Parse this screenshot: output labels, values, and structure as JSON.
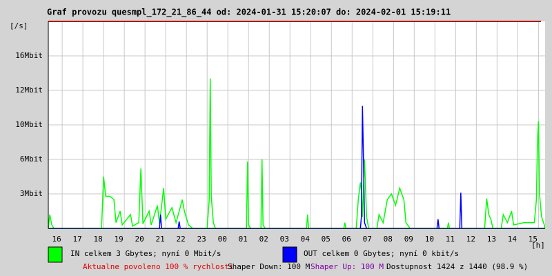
{
  "chart_data": {
    "type": "area",
    "title": "Graf provozu quesmpl_172_21_86_44 od: 2024-01-31 15:20:07 do: 2024-02-01 15:19:11",
    "y_unit": "[/s]",
    "x_unit": "[h]",
    "ylim": [
      0,
      20
    ],
    "yticks": [
      {
        "value": 3,
        "label": "3Mbit"
      },
      {
        "value": 6,
        "label": "6Mbit"
      },
      {
        "value": 10,
        "label": "10Mbit"
      },
      {
        "value": 12,
        "label": "12Mbit"
      },
      {
        "value": 16,
        "label": "16Mbit"
      }
    ],
    "xlim": [
      15.33,
      39.32
    ],
    "xticks": [
      {
        "value": 16,
        "label": "16"
      },
      {
        "value": 17,
        "label": "17"
      },
      {
        "value": 18,
        "label": "18"
      },
      {
        "value": 19,
        "label": "19"
      },
      {
        "value": 20,
        "label": "20"
      },
      {
        "value": 21,
        "label": "21"
      },
      {
        "value": 22,
        "label": "22"
      },
      {
        "value": 23,
        "label": "23"
      },
      {
        "value": 24,
        "label": "00"
      },
      {
        "value": 25,
        "label": "01"
      },
      {
        "value": 26,
        "label": "02"
      },
      {
        "value": 27,
        "label": "03"
      },
      {
        "value": 28,
        "label": "04"
      },
      {
        "value": 29,
        "label": "05"
      },
      {
        "value": 30,
        "label": "06"
      },
      {
        "value": 31,
        "label": "07"
      },
      {
        "value": 32,
        "label": "08"
      },
      {
        "value": 33,
        "label": "09"
      },
      {
        "value": 34,
        "label": "10"
      },
      {
        "value": 35,
        "label": "11"
      },
      {
        "value": 36,
        "label": "12"
      },
      {
        "value": 37,
        "label": "13"
      },
      {
        "value": 38,
        "label": "14"
      },
      {
        "value": 39,
        "label": "15"
      }
    ],
    "grid": true,
    "series": [
      {
        "name": "IN celkem 3 Gbytes; nyní 0 Mbit/s",
        "color": "#00ff00",
        "x": [
          15.33,
          15.4,
          15.5,
          15.6,
          17.9,
          18.0,
          18.1,
          18.3,
          18.5,
          18.6,
          18.8,
          18.9,
          19.3,
          19.4,
          19.7,
          19.8,
          19.9,
          20.2,
          20.3,
          20.6,
          20.7,
          20.9,
          21.0,
          21.3,
          21.5,
          21.8,
          21.9,
          22.1,
          22.3,
          23.0,
          23.1,
          23.15,
          23.2,
          23.3,
          23.4,
          24.9,
          24.95,
          25.0,
          25.1,
          25.6,
          25.65,
          25.7,
          25.8,
          27.8,
          27.85,
          27.9,
          29.6,
          29.65,
          29.7,
          30.2,
          30.3,
          30.4,
          30.45,
          30.5,
          30.6,
          30.7,
          30.8,
          31.2,
          31.3,
          31.5,
          31.7,
          31.9,
          32.1,
          32.3,
          32.5,
          32.6,
          32.8,
          34.6,
          34.65,
          34.7,
          36.4,
          36.5,
          36.6,
          36.7,
          36.8,
          37.2,
          37.3,
          37.5,
          37.7,
          37.8,
          38.3,
          38.8,
          38.9,
          38.95,
          39.0,
          39.05,
          39.15,
          39.3
        ],
        "values": [
          0,
          1.2,
          0.3,
          0,
          0,
          4.5,
          2.8,
          2.8,
          2.5,
          0.5,
          1.5,
          0.3,
          1.2,
          0.2,
          0.5,
          5.2,
          0.4,
          1.5,
          0.3,
          2.0,
          0.4,
          3.5,
          0.8,
          1.8,
          0.5,
          2.5,
          1.5,
          0.3,
          0,
          0,
          2.5,
          13.4,
          2.8,
          0.5,
          0,
          0,
          5.8,
          0.3,
          0,
          0,
          6.0,
          0.3,
          0,
          0,
          1.2,
          0,
          0,
          0.5,
          0,
          0,
          2.5,
          4.0,
          3.2,
          1.0,
          6.0,
          1.0,
          0,
          0,
          1.2,
          0.5,
          2.5,
          3.0,
          2.0,
          3.5,
          2.5,
          0.5,
          0,
          0,
          0.5,
          0,
          0,
          2.6,
          1.2,
          0.8,
          0,
          0,
          1.2,
          0.5,
          1.5,
          0.3,
          0.5,
          0.5,
          2.5,
          8.0,
          10.2,
          3.0,
          1.0,
          0.2
        ]
      },
      {
        "name": "OUT celkem 0 Gbytes; nyní 0 kbit/s",
        "color": "#0000ff",
        "x": [
          15.33,
          20.7,
          20.75,
          20.8,
          21.6,
          21.65,
          21.7,
          30.4,
          30.45,
          30.5,
          30.55,
          30.6,
          30.7,
          34.1,
          34.15,
          34.2,
          35.2,
          35.25,
          35.3,
          39.3
        ],
        "values": [
          0,
          0,
          1.2,
          0,
          0,
          0.6,
          0,
          0,
          1.0,
          11.1,
          6.0,
          0.5,
          0,
          0,
          0.8,
          0,
          0,
          3.1,
          0,
          0
        ]
      }
    ],
    "footer": [
      "Aktualne povoleno 100 % rychlosti",
      "Shaper Down: 100 M",
      "Shaper Up: 100 M",
      "Dostupnost 1424 z 1440 (98.9 %)"
    ]
  }
}
